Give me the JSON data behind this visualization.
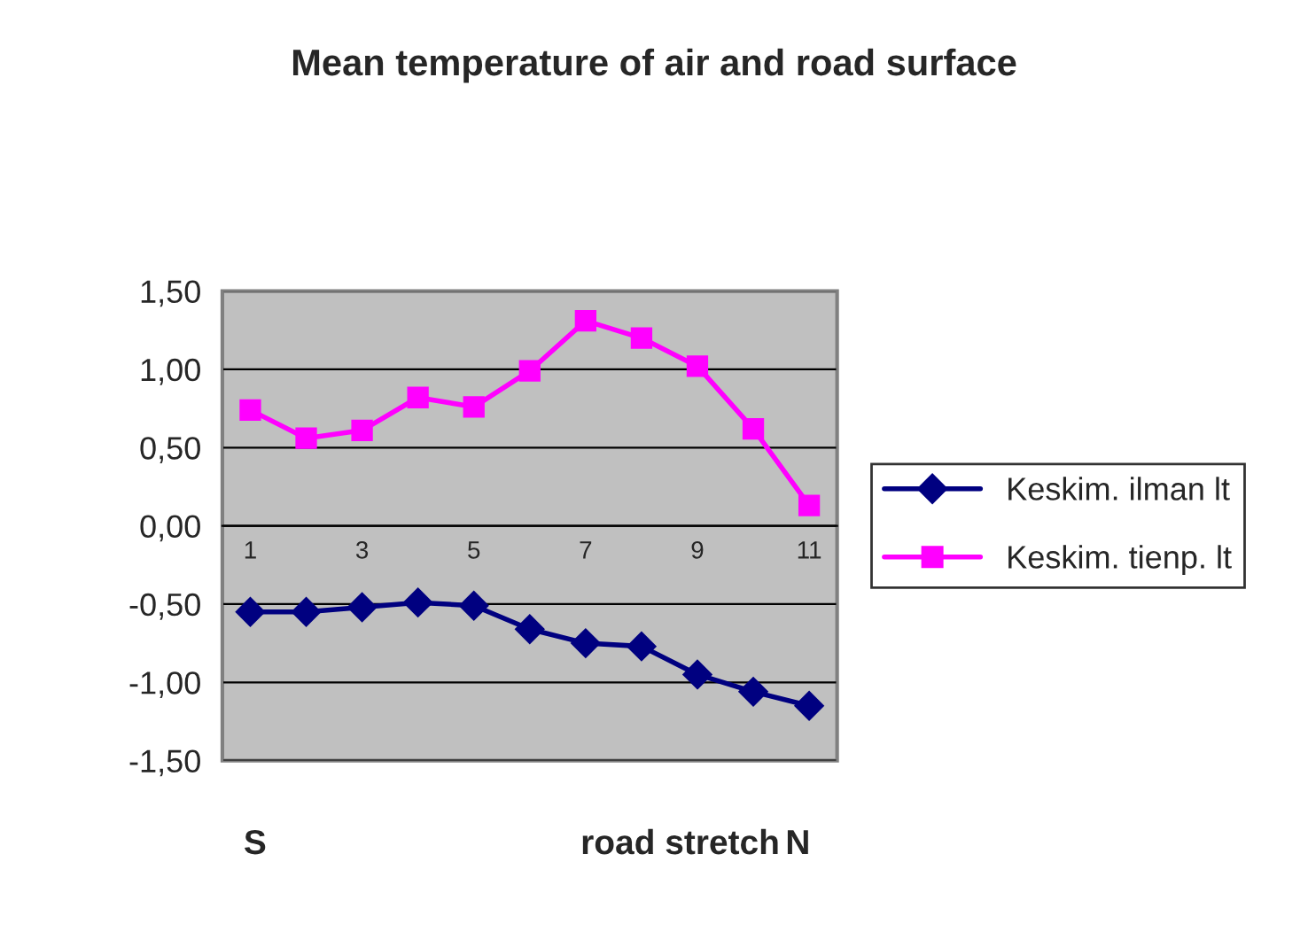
{
  "chart_data": {
    "type": "line",
    "title": "Mean temperature of air and road surface",
    "xlabel": "road stretch",
    "annotations": [
      "S",
      "N"
    ],
    "categories": [
      "1",
      null,
      "3",
      null,
      "5",
      null,
      "7",
      null,
      "9",
      null,
      "11"
    ],
    "series": [
      {
        "name": "Keskim. ilman lt",
        "color": "#000080",
        "marker": "diamond",
        "values": [
          -0.55,
          -0.55,
          -0.52,
          -0.49,
          -0.51,
          -0.66,
          -0.75,
          -0.77,
          -0.95,
          -1.06,
          -1.15
        ]
      },
      {
        "name": "Keskim. tienp. lt",
        "color": "#ff00ff",
        "marker": "square",
        "values": [
          0.74,
          0.56,
          0.61,
          0.82,
          0.76,
          0.99,
          1.31,
          1.2,
          1.02,
          0.62,
          0.13
        ]
      }
    ],
    "ylim": [
      -1.5,
      1.5
    ],
    "yticks": [
      {
        "value": -1.5,
        "label": "-1,50"
      },
      {
        "value": -1.0,
        "label": "-1,00"
      },
      {
        "value": -0.5,
        "label": "-0,50"
      },
      {
        "value": 0,
        "label": "0,00"
      },
      {
        "value": 0.5,
        "label": "0,50"
      },
      {
        "value": 1.0,
        "label": "1,00"
      },
      {
        "value": 1.5,
        "label": "1,50"
      }
    ],
    "grid": "y",
    "legend": "right",
    "line_style": "solid"
  }
}
